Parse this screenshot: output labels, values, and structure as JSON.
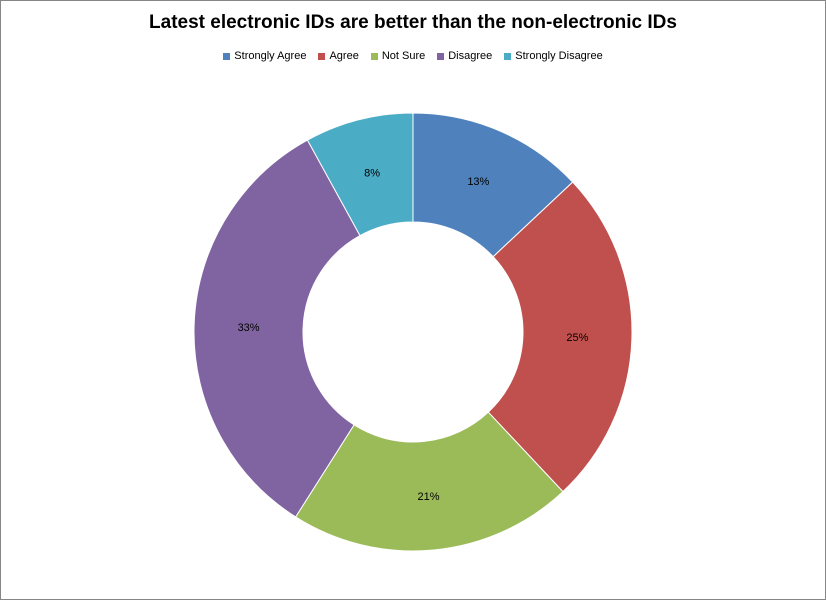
{
  "chart_data": {
    "type": "pie",
    "subtype": "doughnut",
    "title": "Latest electronic IDs are better than the non-electronic IDs",
    "legend_position": "top",
    "categories": [
      "Strongly Agree",
      "Agree",
      "Not Sure",
      "Disagree",
      "Strongly Disagree"
    ],
    "values": [
      13,
      25,
      21,
      33,
      8
    ],
    "data_labels": [
      "13%",
      "25%",
      "21%",
      "33%",
      "8%"
    ],
    "colors": [
      "#4F81BD",
      "#C0504D",
      "#9BBB59",
      "#8064A2",
      "#4BACC6"
    ]
  }
}
